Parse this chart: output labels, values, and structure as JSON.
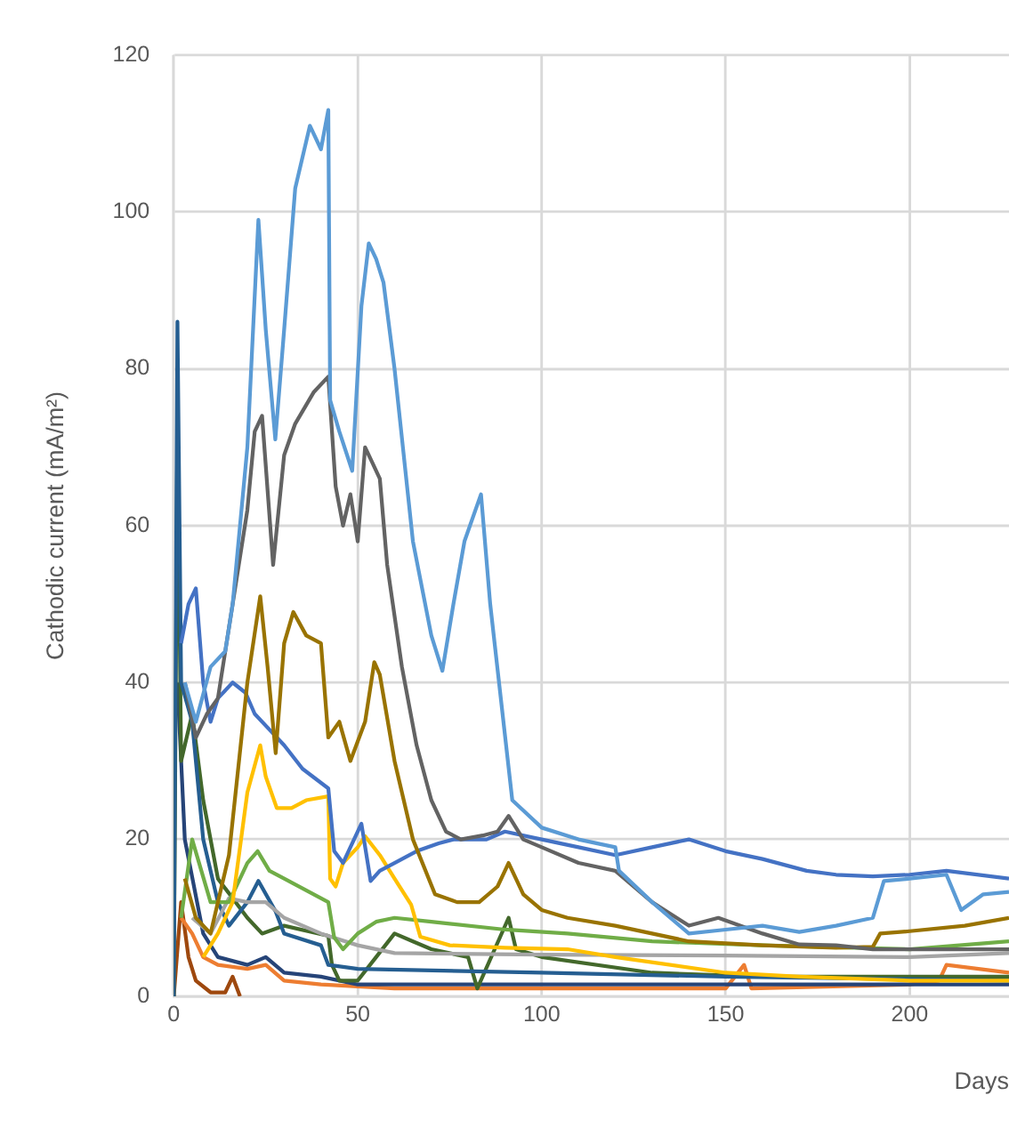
{
  "chart_data": {
    "type": "line",
    "xlabel": "Days",
    "ylabel": "Cathodic current (mA/m²)",
    "xlim": [
      0,
      227
    ],
    "ylim": [
      0,
      120
    ],
    "xticks": [
      0,
      50,
      100,
      150,
      200
    ],
    "yticks": [
      0,
      20,
      40,
      60,
      80,
      100,
      120
    ],
    "grid": true,
    "legend": false,
    "marker": "none",
    "line_style": "solid",
    "series": [
      {
        "color": "#5b9bd5",
        "x": [
          3,
          6,
          10,
          14,
          16,
          20,
          23,
          25,
          27.6,
          30,
          33,
          37,
          40,
          42,
          42.5,
          45,
          48.5,
          51,
          53,
          55,
          57,
          60,
          65,
          70,
          73,
          76,
          79,
          83.5,
          86,
          92,
          100,
          110,
          120,
          121,
          130,
          140,
          150,
          160,
          170,
          180,
          190,
          193,
          200,
          210,
          214,
          220,
          227
        ],
        "values": [
          40,
          35,
          42,
          44,
          50,
          70,
          99,
          85,
          71,
          85,
          103,
          111,
          108,
          113,
          76,
          72,
          67,
          88,
          96,
          94,
          91,
          80,
          58,
          46,
          41.5,
          50,
          58,
          64,
          50,
          25,
          21.5,
          20,
          19,
          16,
          12,
          8,
          8.5,
          9,
          8.2,
          9,
          10,
          14.7,
          15,
          15.5,
          11,
          13,
          13.3
        ]
      },
      {
        "color": "#636363",
        "x": [
          3,
          6,
          9,
          12,
          16,
          20,
          22,
          24,
          27,
          30,
          33,
          38,
          42,
          44,
          46,
          48,
          50,
          52,
          54,
          56,
          58,
          62,
          66,
          70,
          74,
          78,
          84,
          88,
          91,
          95,
          100,
          110,
          120,
          130,
          140,
          148,
          160,
          170,
          180,
          190,
          200,
          227
        ],
        "values": [
          40,
          33,
          36,
          38,
          50,
          62,
          72,
          74,
          55,
          69,
          73,
          77,
          79,
          65,
          60,
          64,
          58,
          70,
          68,
          66,
          55,
          42,
          32,
          25,
          21,
          20,
          20.5,
          21,
          23,
          20,
          19,
          17,
          16,
          12,
          9,
          10,
          8,
          6.6,
          6.5,
          6,
          6,
          6
        ]
      },
      {
        "color": "#997300",
        "x": [
          3,
          6,
          10,
          15,
          20,
          23.5,
          25.5,
          27.7,
          30,
          32.5,
          36,
          40,
          42,
          45,
          48,
          52,
          54.5,
          56,
          60,
          65,
          71,
          77,
          83,
          88,
          91,
          95,
          100,
          107,
          120,
          140,
          160,
          180,
          190,
          192,
          200,
          215,
          227
        ],
        "values": [
          15,
          10,
          8,
          18,
          40,
          51,
          42,
          31,
          45,
          49,
          46,
          45,
          33,
          35,
          30,
          35,
          42.6,
          41,
          30,
          20,
          13,
          12,
          12,
          14,
          17,
          13,
          11,
          10,
          9,
          7,
          6.5,
          6.2,
          6.3,
          8,
          8.3,
          9,
          10
        ]
      },
      {
        "color": "#4472c4",
        "x": [
          2,
          4,
          6,
          8,
          10,
          12,
          16,
          19.5,
          22,
          26,
          30,
          35,
          42,
          43.6,
          46,
          51,
          53.5,
          56,
          60,
          66,
          72,
          76,
          85,
          90,
          100,
          110,
          120,
          130,
          140,
          150,
          160,
          172,
          180,
          190,
          200,
          210,
          227
        ],
        "values": [
          45,
          50,
          52,
          40,
          35,
          38,
          40,
          38.7,
          36,
          34,
          32,
          29,
          26.5,
          18.5,
          17,
          22,
          14.7,
          16,
          17,
          18.5,
          19.5,
          20,
          20,
          21,
          20,
          19,
          18,
          19,
          20,
          18.5,
          17.5,
          16,
          15.5,
          15.3,
          15.5,
          16,
          15
        ]
      },
      {
        "color": "#ffc000",
        "x": [
          8,
          12,
          16,
          20,
          23.5,
          25,
          28,
          32,
          36,
          42,
          42.5,
          44,
          46,
          50,
          52,
          56,
          60,
          64.5,
          67,
          75,
          90,
          107,
          120,
          150,
          170,
          200,
          227
        ],
        "values": [
          5,
          8,
          12,
          26,
          32,
          28,
          24,
          24,
          25,
          25.5,
          15,
          14,
          17,
          19,
          20.4,
          18,
          15,
          11.7,
          7.6,
          6.5,
          6.2,
          6,
          5,
          3,
          2.5,
          2,
          2
        ]
      },
      {
        "color": "#70ad47",
        "x": [
          2,
          5,
          10,
          15,
          20,
          22.8,
          26,
          30,
          36,
          42,
          43.6,
          46,
          50,
          55,
          60,
          70,
          90,
          107,
          130,
          160,
          200,
          227
        ],
        "values": [
          10,
          20,
          12,
          12,
          17,
          18.5,
          16,
          15,
          13.5,
          12,
          7.5,
          6,
          8,
          9.5,
          10,
          9.5,
          8.5,
          8,
          7,
          6.5,
          6,
          7
        ]
      },
      {
        "color": "#a5a5a5",
        "x": [
          5,
          10,
          15,
          20,
          25,
          30,
          40,
          50,
          60,
          100,
          150,
          200,
          227
        ],
        "values": [
          10,
          8,
          12.5,
          12,
          12,
          10,
          8,
          6.5,
          5.5,
          5.3,
          5.2,
          5,
          5.5
        ]
      },
      {
        "color": "#255e91",
        "x": [
          0,
          1,
          2,
          5,
          8,
          12,
          15,
          20,
          23,
          27.7,
          30,
          40,
          42,
          50,
          100,
          150,
          227
        ],
        "values": [
          0,
          86,
          40,
          35,
          20,
          12,
          9,
          12,
          14.7,
          10.8,
          8,
          6.5,
          4,
          3.5,
          3,
          2.5,
          2
        ]
      },
      {
        "color": "#43682b",
        "x": [
          0,
          1,
          2,
          5,
          8,
          12,
          20,
          24,
          30,
          42,
          43,
          45,
          50,
          55,
          60,
          65,
          70,
          80,
          82.5,
          91,
          93,
          100,
          130,
          160,
          227
        ],
        "values": [
          0,
          73,
          30,
          36,
          25,
          15,
          10,
          8,
          9,
          7.7,
          4,
          2,
          2,
          5,
          8,
          7,
          6,
          5,
          1,
          10,
          6,
          5,
          3,
          2.5,
          2.5
        ]
      },
      {
        "color": "#264478",
        "x": [
          1,
          3,
          8,
          12,
          20,
          25,
          30,
          40,
          50,
          100,
          150,
          227
        ],
        "values": [
          40,
          20,
          8,
          5,
          4,
          5,
          3,
          2.5,
          1.5,
          1.5,
          1.5,
          1.5
        ]
      },
      {
        "color": "#ed7d31",
        "x": [
          2,
          5,
          8,
          12,
          20,
          25,
          30,
          40,
          60,
          100,
          150,
          155,
          157,
          200,
          208,
          210,
          227
        ],
        "values": [
          10,
          8,
          5,
          4,
          3.5,
          4,
          2,
          1.5,
          1,
          1,
          1,
          4,
          1,
          1.5,
          2,
          4,
          3
        ]
      },
      {
        "color": "#9e480e",
        "x": [
          0,
          2,
          4,
          6,
          10,
          14,
          16,
          18
        ],
        "values": [
          0,
          12,
          5,
          2,
          0.5,
          0.5,
          2.5,
          0
        ]
      }
    ]
  }
}
